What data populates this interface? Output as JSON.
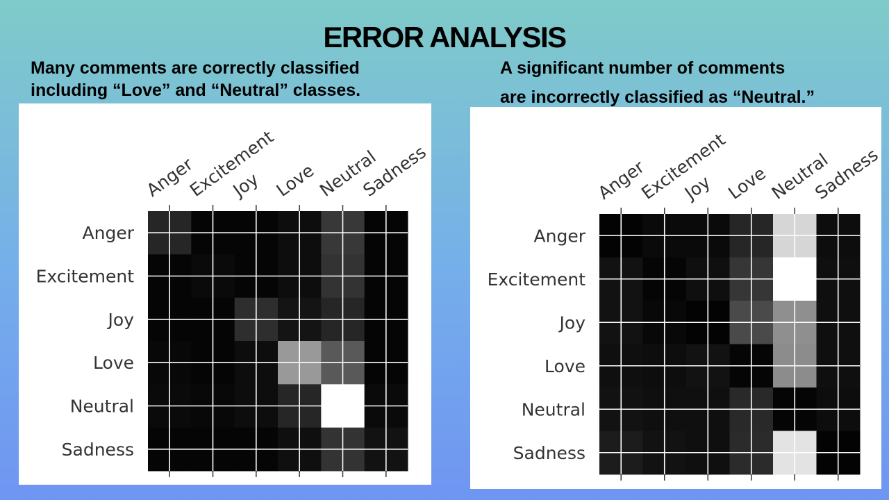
{
  "title": "ERROR ANALYSIS",
  "captions": {
    "left": "Many comments are correctly classified\nincluding “Love” and “Neutral” classes.",
    "right_line1": "A significant number of  comments",
    "right_line2": "are incorrectly classified as “Neutral.”"
  },
  "chart_data": [
    {
      "type": "heatmap",
      "colormap": "grayscale (black = low, white = high)",
      "grid": true,
      "x_categories": [
        "Anger",
        "Excitement",
        "Joy",
        "Love",
        "Neutral",
        "Sadness"
      ],
      "y_categories": [
        "Anger",
        "Excitement",
        "Joy",
        "Love",
        "Neutral",
        "Sadness"
      ],
      "values": [
        [
          0.15,
          0.02,
          0.02,
          0.05,
          0.22,
          0.02
        ],
        [
          0.02,
          0.04,
          0.02,
          0.05,
          0.2,
          0.02
        ],
        [
          0.02,
          0.02,
          0.18,
          0.08,
          0.15,
          0.02
        ],
        [
          0.03,
          0.02,
          0.05,
          0.6,
          0.35,
          0.02
        ],
        [
          0.04,
          0.03,
          0.05,
          0.15,
          1.0,
          0.04
        ],
        [
          0.02,
          0.02,
          0.02,
          0.06,
          0.2,
          0.07
        ]
      ]
    },
    {
      "type": "heatmap",
      "colormap": "grayscale (black = low, white = high)",
      "grid": true,
      "x_categories": [
        "Anger",
        "Excitement",
        "Joy",
        "Love",
        "Neutral",
        "Sadness"
      ],
      "y_categories": [
        "Anger",
        "Excitement",
        "Joy",
        "Love",
        "Neutral",
        "Sadness"
      ],
      "values": [
        [
          0.01,
          0.04,
          0.04,
          0.15,
          0.84,
          0.05
        ],
        [
          0.07,
          0.02,
          0.06,
          0.21,
          1.0,
          0.06
        ],
        [
          0.07,
          0.03,
          0.01,
          0.29,
          0.56,
          0.06
        ],
        [
          0.06,
          0.05,
          0.07,
          0.02,
          0.55,
          0.06
        ],
        [
          0.07,
          0.06,
          0.06,
          0.16,
          0.02,
          0.05
        ],
        [
          0.11,
          0.07,
          0.06,
          0.17,
          0.89,
          0.01
        ]
      ]
    }
  ]
}
